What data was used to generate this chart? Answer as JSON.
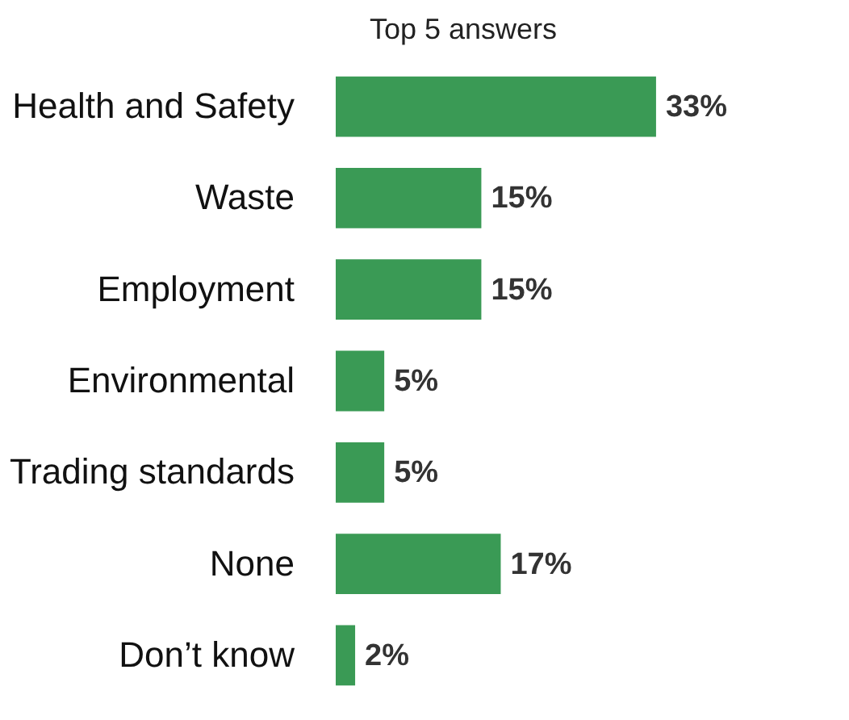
{
  "chart_data": {
    "type": "bar",
    "orientation": "horizontal",
    "title": "Top 5 answers",
    "categories": [
      "Health and Safety",
      "Waste",
      "Employment",
      "Environmental",
      "Trading standards",
      "None",
      "Don’t know"
    ],
    "values": [
      33,
      15,
      15,
      5,
      5,
      17,
      2
    ],
    "value_labels": [
      "33%",
      "15%",
      "15%",
      "5%",
      "5%",
      "17%",
      "2%"
    ],
    "color": "#3a9a55"
  }
}
